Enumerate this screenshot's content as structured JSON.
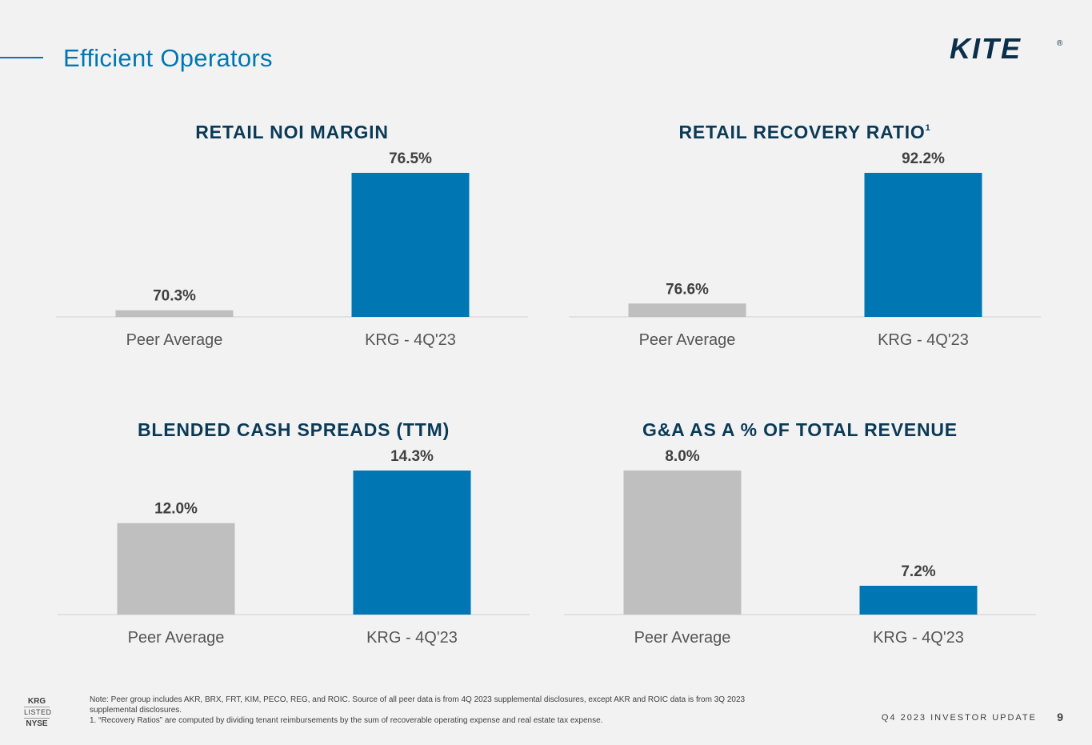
{
  "page": {
    "title": "Efficient Operators",
    "logo_text": "KITE",
    "logo_mark": "®",
    "footer_label": "Q4 2023 INVESTOR UPDATE",
    "page_number": "9",
    "listing": {
      "ticker": "KRG",
      "listed": "LISTED",
      "exchange": "NYSE"
    },
    "footnotes": [
      "Note: Peer group includes AKR, BRX, FRT, KIM, PECO, REG, and ROIC. Source of all peer data is from 4Q 2023 supplemental disclosures, except AKR and ROIC data is from 3Q 2023 supplemental disclosures.",
      "1. “Recovery Ratios” are computed by dividing tenant reimbursements by the sum of recoverable operating expense and real estate tax expense."
    ],
    "colors": {
      "accent": "#0076b3",
      "peer_bar": "#bfbfbf",
      "title": "#0b3a57"
    }
  },
  "chart_data": [
    {
      "type": "bar",
      "title": "RETAIL NOI MARGIN",
      "superscript": "",
      "categories": [
        "Peer Average",
        "KRG - 4Q'23"
      ],
      "values": [
        70.3,
        76.5
      ],
      "value_labels": [
        "70.3%",
        "76.5%"
      ],
      "ylim": [
        70,
        76.5
      ],
      "colors": [
        "#bfbfbf",
        "#0076b3"
      ]
    },
    {
      "type": "bar",
      "title": "RETAIL RECOVERY RATIO",
      "superscript": "1",
      "categories": [
        "Peer Average",
        "KRG - 4Q'23"
      ],
      "values": [
        76.6,
        92.2
      ],
      "value_labels": [
        "76.6%",
        "92.2%"
      ],
      "ylim": [
        75,
        92.2
      ],
      "colors": [
        "#bfbfbf",
        "#0076b3"
      ]
    },
    {
      "type": "bar",
      "title": "BLENDED CASH SPREADS (TTM)",
      "superscript": "",
      "categories": [
        "Peer Average",
        "KRG - 4Q'23"
      ],
      "values": [
        12.0,
        14.3
      ],
      "value_labels": [
        "12.0%",
        "14.3%"
      ],
      "ylim": [
        8,
        14.3
      ],
      "colors": [
        "#bfbfbf",
        "#0076b3"
      ]
    },
    {
      "type": "bar",
      "title": "G&A AS A % OF TOTAL REVENUE",
      "superscript": "",
      "categories": [
        "Peer Average",
        "KRG - 4Q'23"
      ],
      "values": [
        8.0,
        7.2
      ],
      "value_labels": [
        "8.0%",
        "7.2%"
      ],
      "ylim": [
        7,
        8.0
      ],
      "colors": [
        "#bfbfbf",
        "#0076b3"
      ]
    }
  ]
}
